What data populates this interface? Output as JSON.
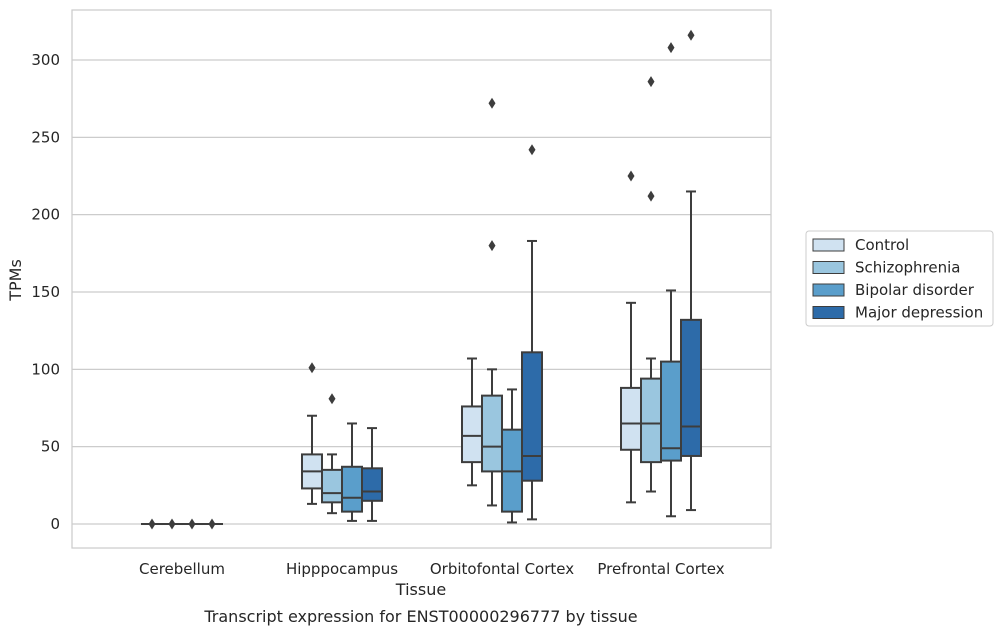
{
  "chart_data": {
    "type": "boxplot",
    "title": "",
    "caption": "Transcript expression for ENST00000296777 by tissue",
    "xlabel": "Tissue",
    "ylabel": "TPMs",
    "ylim": [
      -15,
      332
    ],
    "yticks": [
      0,
      50,
      100,
      150,
      200,
      250,
      300
    ],
    "grid": "horizontal",
    "legend_position": "right",
    "categories": [
      "Cerebellum",
      "Hipppocampus",
      "Orbitofontal Cortex",
      "Prefrontal Cortex"
    ],
    "series": [
      {
        "name": "Control",
        "color": "#d0e2f1",
        "boxes": [
          {
            "min": 0,
            "q1": 0,
            "median": 0,
            "q3": 0,
            "max": 0,
            "outliers": [
              0
            ]
          },
          {
            "min": 13,
            "q1": 23,
            "median": 34,
            "q3": 45,
            "max": 70,
            "outliers": [
              101
            ]
          },
          {
            "min": 25,
            "q1": 40,
            "median": 57,
            "q3": 76,
            "max": 107,
            "outliers": []
          },
          {
            "min": 14,
            "q1": 48,
            "median": 65,
            "q3": 88,
            "max": 143,
            "outliers": [
              225
            ]
          }
        ]
      },
      {
        "name": "Schizophrenia",
        "color": "#9ac6df",
        "boxes": [
          {
            "min": 0,
            "q1": 0,
            "median": 0,
            "q3": 0,
            "max": 0,
            "outliers": [
              0
            ]
          },
          {
            "min": 7,
            "q1": 14,
            "median": 20,
            "q3": 35,
            "max": 45,
            "outliers": [
              81
            ]
          },
          {
            "min": 12,
            "q1": 34,
            "median": 50,
            "q3": 83,
            "max": 100,
            "outliers": [
              180,
              272
            ]
          },
          {
            "min": 21,
            "q1": 40,
            "median": 65,
            "q3": 94,
            "max": 107,
            "outliers": [
              212,
              286
            ]
          }
        ]
      },
      {
        "name": "Bipolar disorder",
        "color": "#5a9ecb",
        "boxes": [
          {
            "min": 0,
            "q1": 0,
            "median": 0,
            "q3": 0,
            "max": 0,
            "outliers": [
              0
            ]
          },
          {
            "min": 2,
            "q1": 8,
            "median": 17,
            "q3": 37,
            "max": 65,
            "outliers": []
          },
          {
            "min": 1,
            "q1": 8,
            "median": 34,
            "q3": 61,
            "max": 87,
            "outliers": []
          },
          {
            "min": 5,
            "q1": 41,
            "median": 49,
            "q3": 105,
            "max": 151,
            "outliers": [
              308
            ]
          }
        ]
      },
      {
        "name": "Major depression",
        "color": "#2d6ba9",
        "boxes": [
          {
            "min": 0,
            "q1": 0,
            "median": 0,
            "q3": 0,
            "max": 0,
            "outliers": [
              0
            ]
          },
          {
            "min": 2,
            "q1": 15,
            "median": 21,
            "q3": 36,
            "max": 62,
            "outliers": []
          },
          {
            "min": 3,
            "q1": 28,
            "median": 44,
            "q3": 111,
            "max": 183,
            "outliers": [
              242
            ]
          },
          {
            "min": 9,
            "q1": 44,
            "median": 63,
            "q3": 132,
            "max": 215,
            "outliers": [
              316
            ]
          }
        ]
      }
    ]
  }
}
